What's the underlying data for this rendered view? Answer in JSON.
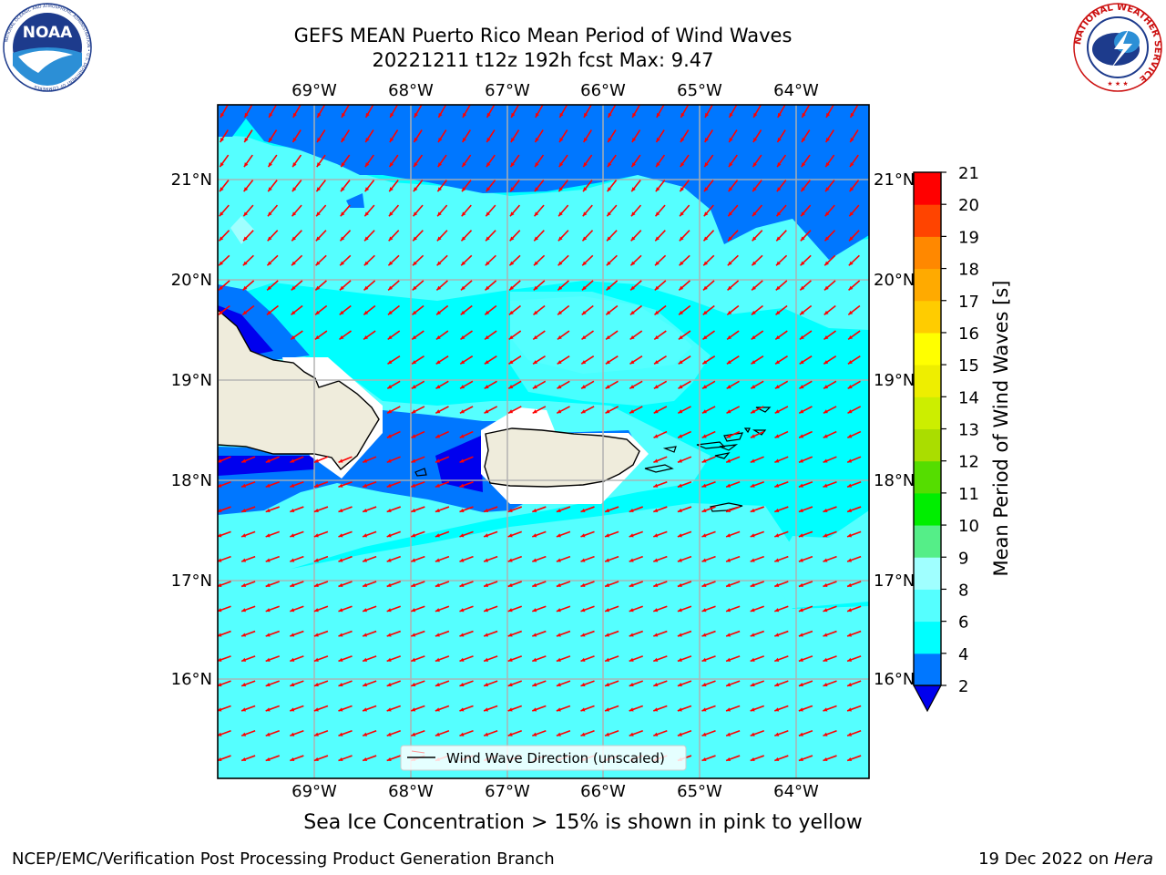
{
  "header": {
    "title_line1": "GEFS MEAN Puerto Rico Mean Period of Wind Waves",
    "title_line2": "20221211 t12z 192h fcst   Max: 9.47"
  },
  "logos": {
    "left": "NOAA",
    "left_ring_text": "NATIONAL OCEANIC AND ATMOSPHERIC ADMINISTRATION • U.S. DEPARTMENT OF COMMERCE",
    "right_ring_text": "NATIONAL WEATHER SERVICE"
  },
  "map": {
    "lon_labels": [
      "69°W",
      "68°W",
      "67°W",
      "66°W",
      "65°W",
      "64°W"
    ],
    "lat_labels": [
      "21°N",
      "20°N",
      "19°N",
      "18°N",
      "17°N",
      "16°N"
    ],
    "legend_label": "Wind Wave Direction (unscaled)",
    "arrow_color": "#ff0000",
    "land_color": "#efecdc",
    "coast_color": "#000000"
  },
  "colorbar": {
    "label": "Mean Period of Wind Waves [s]",
    "ticks": [
      "2",
      "4",
      "6",
      "8",
      "9",
      "10",
      "11",
      "12",
      "13",
      "14",
      "15",
      "16",
      "17",
      "18",
      "19",
      "20",
      "21"
    ],
    "colors": [
      "#0000ee",
      "#0077ff",
      "#00ffff",
      "#55ffff",
      "#a0ffff",
      "#55ee88",
      "#00ee00",
      "#55dd00",
      "#aadd00",
      "#ccee00",
      "#eeee00",
      "#ffff00",
      "#ffcc00",
      "#ffaa00",
      "#ff8800",
      "#ff4400",
      "#ff0000"
    ]
  },
  "note": "Sea Ice Concentration > 15% is shown in pink to yellow",
  "footer": {
    "left": "NCEP/EMC/Verification Post Processing Product Generation Branch",
    "right_date": "19 Dec 2022 on ",
    "right_host": "Hera"
  }
}
